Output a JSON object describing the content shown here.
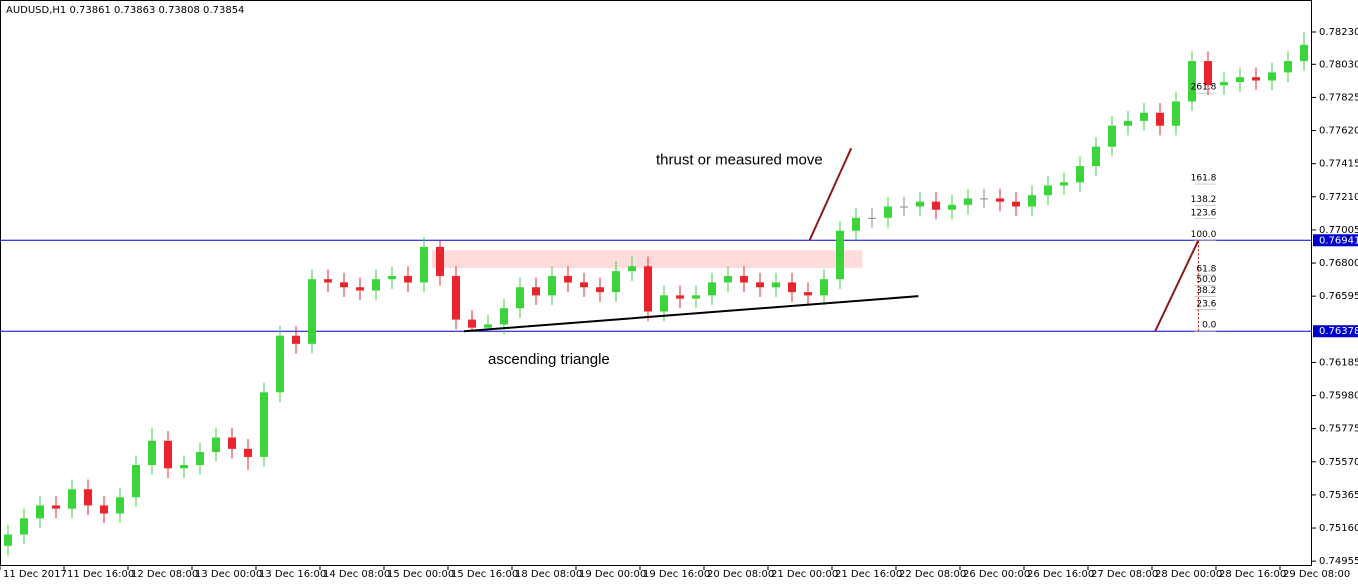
{
  "chart_data": {
    "type": "candlestick",
    "title": "AUDUSD,H1  0.73861 0.73863 0.73808 0.73854",
    "up_color": "#3ad43a",
    "down_color": "#e8242c",
    "flat_color": "#888888",
    "open": [
      0.7505,
      0.7512,
      0.7522,
      0.753,
      0.7528,
      0.754,
      0.753,
      0.7525,
      0.7535,
      0.7555,
      0.757,
      0.7553,
      0.7555,
      0.7563,
      0.7572,
      0.7565,
      0.756,
      0.76,
      0.7635,
      0.763,
      0.767,
      0.7668,
      0.7665,
      0.7663,
      0.767,
      0.7672,
      0.7668,
      0.769,
      0.7672,
      0.7645,
      0.764,
      0.7642,
      0.7652,
      0.7665,
      0.766,
      0.7672,
      0.7668,
      0.7665,
      0.7662,
      0.7675,
      0.7678,
      0.765,
      0.766,
      0.7658,
      0.766,
      0.7668,
      0.7672,
      0.7668,
      0.7665,
      0.7668,
      0.7662,
      0.766,
      0.767,
      0.77,
      0.7708,
      0.7708,
      0.7715,
      0.7715,
      0.7718,
      0.7713,
      0.7716,
      0.772,
      0.772,
      0.7718,
      0.7715,
      0.7722,
      0.7728,
      0.773,
      0.774,
      0.7752,
      0.7765,
      0.7768,
      0.7773,
      0.7765,
      0.778,
      0.7805,
      0.779,
      0.7792,
      0.7795,
      0.7793,
      0.7798,
      0.7805
    ],
    "high": [
      0.7518,
      0.7528,
      0.7536,
      0.7536,
      0.7546,
      0.7546,
      0.7536,
      0.7541,
      0.7561,
      0.7578,
      0.7576,
      0.7561,
      0.7569,
      0.7578,
      0.7578,
      0.7571,
      0.7606,
      0.7641,
      0.7641,
      0.7676,
      0.7676,
      0.7674,
      0.7671,
      0.7676,
      0.7678,
      0.7678,
      0.7696,
      0.7694,
      0.7678,
      0.7651,
      0.7648,
      0.7658,
      0.7671,
      0.7671,
      0.7678,
      0.7678,
      0.7674,
      0.7671,
      0.7681,
      0.7684,
      0.7684,
      0.7666,
      0.7666,
      0.7666,
      0.7674,
      0.7678,
      0.7678,
      0.7674,
      0.7674,
      0.7674,
      0.7668,
      0.7676,
      0.7706,
      0.7714,
      0.7714,
      0.7721,
      0.7721,
      0.7724,
      0.7724,
      0.7722,
      0.7726,
      0.7726,
      0.7726,
      0.7724,
      0.7728,
      0.7734,
      0.7736,
      0.7746,
      0.7758,
      0.7771,
      0.7774,
      0.7779,
      0.7779,
      0.7786,
      0.7811,
      0.7811,
      0.7798,
      0.7801,
      0.7801,
      0.7804,
      0.7811,
      0.7823
    ],
    "low": [
      0.7499,
      0.7506,
      0.7516,
      0.7522,
      0.7522,
      0.7524,
      0.7519,
      0.7519,
      0.7529,
      0.7549,
      0.7547,
      0.7547,
      0.7549,
      0.7557,
      0.7559,
      0.7552,
      0.7554,
      0.7594,
      0.7624,
      0.7624,
      0.7662,
      0.7659,
      0.7657,
      0.7657,
      0.7664,
      0.7662,
      0.7662,
      0.7666,
      0.7639,
      0.7638,
      0.7638,
      0.7636,
      0.7646,
      0.7654,
      0.7654,
      0.7662,
      0.7659,
      0.7656,
      0.7656,
      0.7669,
      0.7644,
      0.7644,
      0.7652,
      0.7652,
      0.7654,
      0.7662,
      0.7662,
      0.7659,
      0.7659,
      0.7656,
      0.7654,
      0.7654,
      0.7664,
      0.7694,
      0.7702,
      0.7702,
      0.7709,
      0.7709,
      0.7707,
      0.7707,
      0.771,
      0.7714,
      0.7712,
      0.7709,
      0.7709,
      0.7716,
      0.7722,
      0.7724,
      0.7734,
      0.7746,
      0.7759,
      0.7762,
      0.7759,
      0.7759,
      0.7774,
      0.7784,
      0.7784,
      0.7786,
      0.7787,
      0.7787,
      0.7792,
      0.7799
    ],
    "close": [
      0.7512,
      0.7522,
      0.753,
      0.7528,
      0.754,
      0.753,
      0.7525,
      0.7535,
      0.7555,
      0.757,
      0.7553,
      0.7555,
      0.7563,
      0.7572,
      0.7565,
      0.756,
      0.76,
      0.7635,
      0.763,
      0.767,
      0.7668,
      0.7665,
      0.7663,
      0.767,
      0.7672,
      0.7668,
      0.769,
      0.7672,
      0.7645,
      0.764,
      0.7642,
      0.7652,
      0.7665,
      0.766,
      0.7672,
      0.7668,
      0.7665,
      0.7662,
      0.7675,
      0.7678,
      0.765,
      0.766,
      0.7658,
      0.766,
      0.7668,
      0.7672,
      0.7668,
      0.7665,
      0.7668,
      0.7662,
      0.766,
      0.767,
      0.77,
      0.7708,
      0.7708,
      0.7715,
      0.7715,
      0.7718,
      0.7713,
      0.7716,
      0.772,
      0.772,
      0.7718,
      0.7715,
      0.7722,
      0.7728,
      0.773,
      0.774,
      0.7752,
      0.7765,
      0.7768,
      0.7773,
      0.7765,
      0.778,
      0.7805,
      0.779,
      0.7792,
      0.7795,
      0.7793,
      0.7798,
      0.7805,
      0.7815
    ],
    "xlim": [
      0,
      82
    ],
    "ylim": [
      0.74925,
      0.78428
    ],
    "xticks": [
      {
        "value": 0,
        "label": "11 Dec 2017"
      },
      {
        "value": 4,
        "label": "11 Dec 16:00"
      },
      {
        "value": 8,
        "label": "12 Dec 08:00"
      },
      {
        "value": 12,
        "label": "13 Dec 00:00"
      },
      {
        "value": 16,
        "label": "13 Dec 16:00"
      },
      {
        "value": 20,
        "label": "14 Dec 08:00"
      },
      {
        "value": 24,
        "label": "15 Dec 00:00"
      },
      {
        "value": 28,
        "label": "15 Dec 16:00"
      },
      {
        "value": 32,
        "label": "18 Dec 08:00"
      },
      {
        "value": 36,
        "label": "19 Dec 00:00"
      },
      {
        "value": 40,
        "label": "19 Dec 16:00"
      },
      {
        "value": 44,
        "label": "20 Dec 08:00"
      },
      {
        "value": 48,
        "label": "21 Dec 00:00"
      },
      {
        "value": 52,
        "label": "21 Dec 16:00"
      },
      {
        "value": 56,
        "label": "22 Dec 08:00"
      },
      {
        "value": 60,
        "label": "26 Dec 00:00"
      },
      {
        "value": 64,
        "label": "26 Dec 16:00"
      },
      {
        "value": 68,
        "label": "27 Dec 08:00"
      },
      {
        "value": 72,
        "label": "28 Dec 00:00"
      },
      {
        "value": 76,
        "label": "28 Dec 16:00"
      },
      {
        "value": 80,
        "label": "29 Dec 08:00"
      }
    ],
    "yticks": [
      {
        "value": 0.7823,
        "label": "0.78230"
      },
      {
        "value": 0.7803,
        "label": "0.78030"
      },
      {
        "value": 0.77825,
        "label": "0.77825"
      },
      {
        "value": 0.7762,
        "label": "0.77620"
      },
      {
        "value": 0.77415,
        "label": "0.77415"
      },
      {
        "value": 0.7721,
        "label": "0.77210"
      },
      {
        "value": 0.77005,
        "label": "0.77005"
      },
      {
        "value": 0.768,
        "label": "0.76800"
      },
      {
        "value": 0.76595,
        "label": "0.76595"
      },
      {
        "value": 0.76185,
        "label": "0.76185"
      },
      {
        "value": 0.7598,
        "label": "0.75980"
      },
      {
        "value": 0.75775,
        "label": "0.75775"
      },
      {
        "value": 0.7557,
        "label": "0.75570"
      },
      {
        "value": 0.75365,
        "label": "0.75365"
      },
      {
        "value": 0.7516,
        "label": "0.75160"
      },
      {
        "value": 0.74955,
        "label": "0.74955"
      }
    ],
    "hlines": [
      {
        "value": 0.76941,
        "label": "0.76941"
      },
      {
        "value": 0.76378,
        "label": "0.76378"
      }
    ],
    "hline_color": "#0000cc",
    "rectangle": {
      "x": [
        27,
        53.9
      ],
      "y": [
        0.76768,
        0.7688
      ],
      "color": "#ffdcdc"
    },
    "trendlines": [
      {
        "x": [
          29,
          57.4
        ],
        "y": [
          0.76378,
          0.76595
        ],
        "color": "#000000"
      },
      {
        "x": [
          50.6,
          53.2
        ],
        "y": [
          0.76941,
          0.7751
        ],
        "color": "#8b1a1a"
      },
      {
        "x": [
          72.2,
          74.9
        ],
        "y": [
          0.76378,
          0.76941
        ],
        "color": "#8b1a1a"
      }
    ],
    "fibo": {
      "x": 74.9,
      "p0": 0.76378,
      "p100": 0.76941,
      "color": "#cc0000",
      "levels": [
        {
          "value": 0,
          "label": "0.0"
        },
        23.6,
        38.2,
        {
          "value": 50,
          "label": "50.0"
        },
        61.8,
        {
          "value": 100,
          "label": "100.0"
        },
        123.6,
        138.2,
        161.8,
        261.8
      ]
    },
    "annotations": [
      {
        "text": "thrust or measured move",
        "x": 41,
        "y": 0.77435
      },
      {
        "text": "ascending triangle",
        "x": 30.5,
        "y": 0.762
      }
    ]
  }
}
